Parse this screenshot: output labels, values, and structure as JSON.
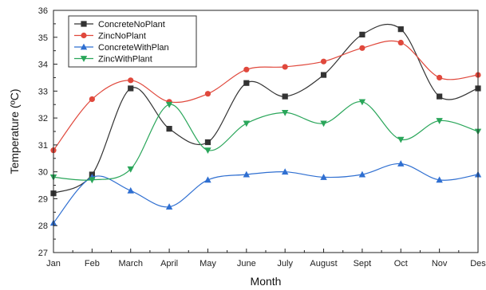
{
  "chart_data": {
    "type": "line",
    "title": "",
    "xlabel": "Month",
    "ylabel": "Temperature (ºC)",
    "ylim": [
      27,
      36
    ],
    "yticks": [
      27,
      28,
      29,
      30,
      31,
      32,
      33,
      34,
      35,
      36
    ],
    "categories": [
      "Jan",
      "Feb",
      "March",
      "April",
      "May",
      "June",
      "July",
      "August",
      "Sept",
      "Oct",
      "Nov",
      "Des"
    ],
    "legend_position": "top-left",
    "grid": false,
    "series": [
      {
        "name": "ConcreteNoPlant",
        "color": "#333333",
        "marker": "square",
        "values": [
          29.2,
          29.9,
          33.1,
          31.6,
          31.1,
          33.3,
          32.8,
          33.6,
          35.1,
          35.3,
          32.8,
          33.1
        ]
      },
      {
        "name": "ZincNoPlant",
        "color": "#e0483c",
        "marker": "circle",
        "values": [
          30.8,
          32.7,
          33.4,
          32.6,
          32.9,
          33.8,
          33.9,
          34.1,
          34.6,
          34.8,
          33.5,
          33.6
        ]
      },
      {
        "name": "ConcreteWithPlan",
        "color": "#2f6fd1",
        "marker": "triangle-up",
        "values": [
          28.1,
          29.8,
          29.3,
          28.7,
          29.7,
          29.9,
          30.0,
          29.8,
          29.9,
          30.3,
          29.7,
          29.9
        ]
      },
      {
        "name": "ZincWithPlant",
        "color": "#2aa65a",
        "marker": "triangle-down",
        "values": [
          29.8,
          29.7,
          30.1,
          32.5,
          30.8,
          31.8,
          32.2,
          31.8,
          32.6,
          31.2,
          31.9,
          31.5
        ]
      }
    ]
  }
}
